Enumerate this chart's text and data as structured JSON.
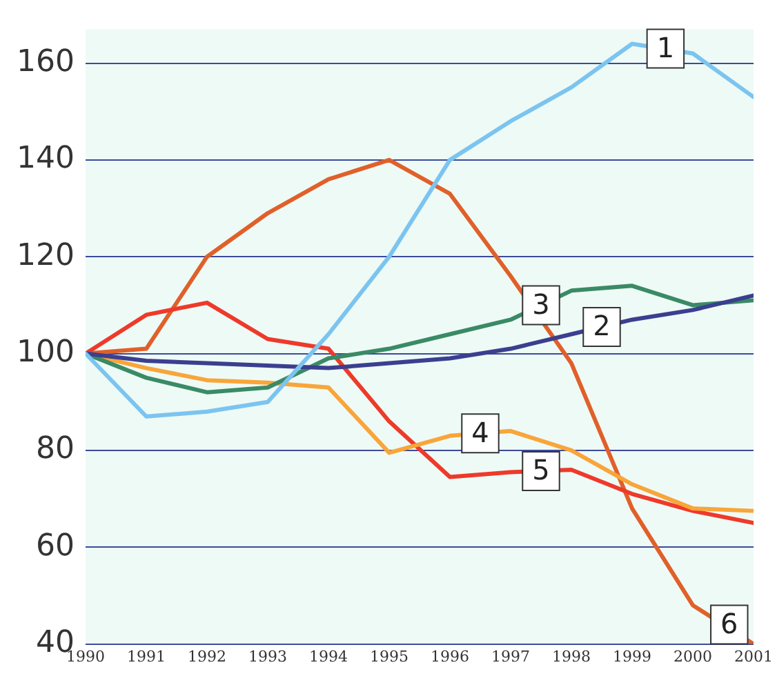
{
  "chart_data": {
    "type": "line",
    "x": [
      1990,
      1991,
      1992,
      1993,
      1994,
      1995,
      1996,
      1997,
      1998,
      1999,
      2000,
      2001
    ],
    "series": [
      {
        "color": "#7cc4f0",
        "values": [
          100,
          87,
          88,
          90,
          104,
          120,
          140,
          148,
          155,
          164,
          162,
          153
        ]
      },
      {
        "color": "#3b3f8f",
        "values": [
          100,
          98.5,
          98,
          97.5,
          97,
          98,
          99,
          101,
          104,
          107,
          109,
          112
        ]
      },
      {
        "color": "#3a8a66",
        "values": [
          100,
          95,
          92,
          93,
          99,
          101,
          104,
          107,
          113,
          114,
          110,
          111
        ]
      },
      {
        "color": "#f9a53a",
        "values": [
          100,
          97,
          94.5,
          94,
          93,
          79.5,
          83,
          84,
          80,
          73,
          68,
          67.5
        ]
      },
      {
        "color": "#ee3a2a",
        "values": [
          100,
          108,
          110.5,
          103,
          101,
          86,
          74.5,
          75.5,
          76,
          71,
          67.5,
          65
        ]
      },
      {
        "color": "#e0602a",
        "values": [
          100,
          101,
          120,
          129,
          136,
          140,
          133,
          116,
          98,
          68,
          48,
          40
        ]
      }
    ],
    "annotations": [
      {
        "text": "1",
        "x": 1999.55,
        "y": 163
      },
      {
        "text": "2",
        "x": 1998.5,
        "y": 105.5
      },
      {
        "text": "3",
        "x": 1997.5,
        "y": 110
      },
      {
        "text": "4",
        "x": 1996.5,
        "y": 83.5
      },
      {
        "text": "5",
        "x": 1997.5,
        "y": 75.7
      },
      {
        "text": "6",
        "x": 2000.6,
        "y": 44
      }
    ],
    "xlim": [
      1990,
      2001
    ],
    "xticks": [
      1990,
      1991,
      1992,
      1993,
      1994,
      1995,
      1996,
      1997,
      1998,
      1999,
      2000,
      2001
    ],
    "ylim": [
      40,
      167
    ],
    "yticks": [
      40,
      60,
      80,
      100,
      120,
      140,
      160
    ],
    "grid": "y",
    "legend": false,
    "marker": "none",
    "line_style": "solid"
  }
}
